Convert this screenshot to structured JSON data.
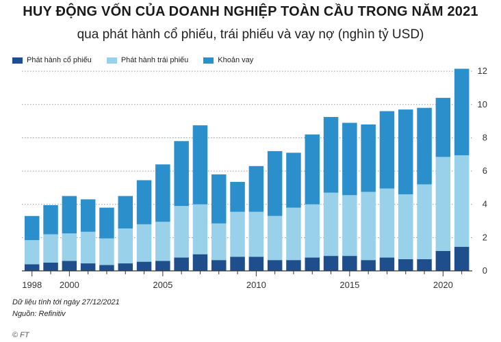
{
  "title": "HUY ĐỘNG VỐN CỦA DOANH NGHIỆP TOÀN CẦU TRONG NĂM 2021",
  "subtitle": "qua phát hành cổ phiếu, trái phiếu và vay nợ (nghìn tỷ USD)",
  "note_date": "Dữ liệu tính tới ngày 27/12/2021",
  "note_source": "Nguồn: Refinitiv",
  "footer": "© FT",
  "colors": {
    "equity": "#1f4e8c",
    "bonds": "#99d1ea",
    "loans": "#2b8fcb",
    "axis": "#333333",
    "grid": "#9a9a9a"
  },
  "chart_data": {
    "type": "bar",
    "stacked": true,
    "x": [
      1998,
      1999,
      2000,
      2001,
      2002,
      2003,
      2004,
      2005,
      2006,
      2007,
      2008,
      2009,
      2010,
      2011,
      2012,
      2013,
      2014,
      2015,
      2016,
      2017,
      2018,
      2019,
      2020,
      2021
    ],
    "x_tick_labels": [
      "1998",
      "2000",
      "2005",
      "2010",
      "2015",
      "2020"
    ],
    "x_tick_values": [
      1998,
      2000,
      2005,
      2010,
      2015,
      2020
    ],
    "series": [
      {
        "name": "Phát hành cổ phiếu",
        "key": "equity",
        "values": [
          0.4,
          0.5,
          0.6,
          0.45,
          0.35,
          0.45,
          0.55,
          0.6,
          0.8,
          1.0,
          0.65,
          0.85,
          0.85,
          0.65,
          0.65,
          0.8,
          0.9,
          0.9,
          0.65,
          0.8,
          0.7,
          0.7,
          1.2,
          1.45
        ]
      },
      {
        "name": "Phát hành trái phiếu",
        "key": "bonds",
        "values": [
          1.45,
          1.7,
          1.65,
          1.9,
          1.6,
          2.1,
          2.25,
          2.35,
          3.1,
          3.0,
          2.2,
          2.7,
          2.7,
          2.65,
          3.15,
          3.2,
          3.8,
          3.65,
          4.1,
          4.15,
          3.9,
          4.5,
          5.65,
          5.5
        ]
      },
      {
        "name": "Khoản vay",
        "key": "loans",
        "values": [
          1.45,
          1.75,
          2.25,
          1.95,
          1.85,
          1.95,
          2.65,
          3.45,
          3.9,
          4.75,
          2.95,
          1.8,
          2.75,
          3.9,
          3.3,
          4.2,
          4.55,
          4.35,
          4.05,
          4.65,
          5.1,
          4.6,
          3.55,
          5.2
        ]
      }
    ],
    "y_ticks": [
      0,
      2,
      4,
      6,
      8,
      10,
      12
    ],
    "ylim": [
      0,
      12.5
    ],
    "grid": true,
    "y_axis_position": "right",
    "legend_position": "top-left"
  }
}
